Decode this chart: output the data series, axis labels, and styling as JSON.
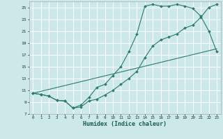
{
  "xlabel": "Humidex (Indice chaleur)",
  "bg_color": "#cce8e8",
  "grid_color": "#ffffff",
  "line_color": "#2d7a6e",
  "xlim": [
    -0.5,
    23.5
  ],
  "ylim": [
    7,
    26
  ],
  "xticks": [
    0,
    1,
    2,
    3,
    4,
    5,
    6,
    7,
    8,
    9,
    10,
    11,
    12,
    13,
    14,
    15,
    16,
    17,
    18,
    19,
    20,
    21,
    22,
    23
  ],
  "yticks": [
    7,
    9,
    11,
    13,
    15,
    17,
    19,
    21,
    23,
    25
  ],
  "line1_x": [
    0,
    1,
    2,
    3,
    4,
    5,
    6,
    7,
    8,
    9,
    10,
    11,
    12,
    13,
    14,
    15,
    16,
    17,
    18,
    19,
    20,
    21,
    22,
    23
  ],
  "line1_y": [
    10.5,
    10.3,
    10.0,
    9.3,
    9.2,
    8.0,
    8.2,
    9.2,
    9.5,
    10.2,
    11.0,
    12.0,
    13.0,
    14.2,
    16.5,
    18.5,
    19.5,
    20.0,
    20.5,
    21.5,
    22.0,
    23.3,
    25.0,
    25.5
  ],
  "line2_x": [
    0,
    1,
    2,
    3,
    4,
    5,
    6,
    7,
    8,
    9,
    10,
    11,
    12,
    13,
    14,
    15,
    16,
    17,
    18,
    19,
    20,
    21,
    22,
    23
  ],
  "line2_y": [
    10.5,
    10.3,
    10.0,
    9.3,
    9.2,
    8.0,
    8.5,
    9.8,
    11.5,
    12.0,
    13.5,
    15.0,
    17.5,
    20.5,
    25.2,
    25.5,
    25.2,
    25.2,
    25.5,
    25.2,
    24.8,
    23.5,
    21.0,
    17.5
  ],
  "line3_x": [
    0,
    23
  ],
  "line3_y": [
    10.5,
    18.0
  ]
}
